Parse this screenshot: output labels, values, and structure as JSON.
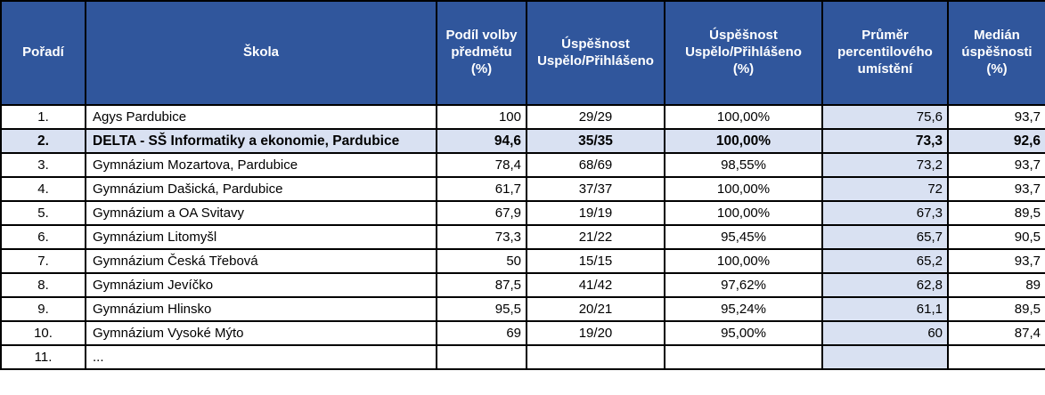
{
  "colors": {
    "header_bg": "#30569C",
    "header_text": "#FFFFFF",
    "highlight_bg": "#D9E1F2",
    "percentile_column_bg": "#D9E1F2",
    "grid_border": "#000000",
    "cell_bg": "#FFFFFF"
  },
  "table": {
    "columns": [
      {
        "key": "rank",
        "label": "Pořadí"
      },
      {
        "key": "school",
        "label": "Škola"
      },
      {
        "key": "share",
        "label": "Podíl volby\npředmětu\n(%)"
      },
      {
        "key": "ratio",
        "label": "Úspěšnost\nUspělo/Přihlášeno"
      },
      {
        "key": "ratio_pct",
        "label": "Úspěšnost\nUspělo/Přihlášeno\n(%)"
      },
      {
        "key": "percentile_avg",
        "label": "Průměr\npercentilového\numístění"
      },
      {
        "key": "median",
        "label": "Medián\núspěšnosti\n(%)"
      }
    ],
    "row_field_order": [
      "rank",
      "school",
      "share",
      "ratio",
      "ratio_pct",
      "percentile_avg",
      "median"
    ],
    "rows": [
      {
        "rank": "1.",
        "school": "Agys Pardubice",
        "share": "100",
        "ratio": "29/29",
        "ratio_pct": "100,00%",
        "percentile_avg": "75,6",
        "median": "93,7",
        "highlight": false
      },
      {
        "rank": "2.",
        "school": "DELTA - SŠ Informatiky a ekonomie, Pardubice",
        "share": "94,6",
        "ratio": "35/35",
        "ratio_pct": "100,00%",
        "percentile_avg": "73,3",
        "median": "92,6",
        "highlight": true
      },
      {
        "rank": "3.",
        "school": "Gymnázium Mozartova, Pardubice",
        "share": "78,4",
        "ratio": "68/69",
        "ratio_pct": "98,55%",
        "percentile_avg": "73,2",
        "median": "93,7",
        "highlight": false
      },
      {
        "rank": "4.",
        "school": "Gymnázium Dašická, Pardubice",
        "share": "61,7",
        "ratio": "37/37",
        "ratio_pct": "100,00%",
        "percentile_avg": "72",
        "median": "93,7",
        "highlight": false
      },
      {
        "rank": "5.",
        "school": "Gymnázium a OA Svitavy",
        "share": "67,9",
        "ratio": "19/19",
        "ratio_pct": "100,00%",
        "percentile_avg": "67,3",
        "median": "89,5",
        "highlight": false
      },
      {
        "rank": "6.",
        "school": "Gymnázium Litomyšl",
        "share": "73,3",
        "ratio": "21/22",
        "ratio_pct": "95,45%",
        "percentile_avg": "65,7",
        "median": "90,5",
        "highlight": false
      },
      {
        "rank": "7.",
        "school": "Gymnázium Česká Třebová",
        "share": "50",
        "ratio": "15/15",
        "ratio_pct": "100,00%",
        "percentile_avg": "65,2",
        "median": "93,7",
        "highlight": false
      },
      {
        "rank": "8.",
        "school": "Gymnázium Jevíčko",
        "share": "87,5",
        "ratio": "41/42",
        "ratio_pct": "97,62%",
        "percentile_avg": "62,8",
        "median": "89",
        "highlight": false
      },
      {
        "rank": "9.",
        "school": "Gymnázium Hlinsko",
        "share": "95,5",
        "ratio": "20/21",
        "ratio_pct": "95,24%",
        "percentile_avg": "61,1",
        "median": "89,5",
        "highlight": false
      },
      {
        "rank": "10.",
        "school": "Gymnázium Vysoké Mýto",
        "share": "69",
        "ratio": "19/20",
        "ratio_pct": "95,00%",
        "percentile_avg": "60",
        "median": "87,4",
        "highlight": false
      },
      {
        "rank": "11.",
        "school": "...",
        "share": "",
        "ratio": "",
        "ratio_pct": "",
        "percentile_avg": "",
        "median": "",
        "highlight": false
      }
    ]
  }
}
